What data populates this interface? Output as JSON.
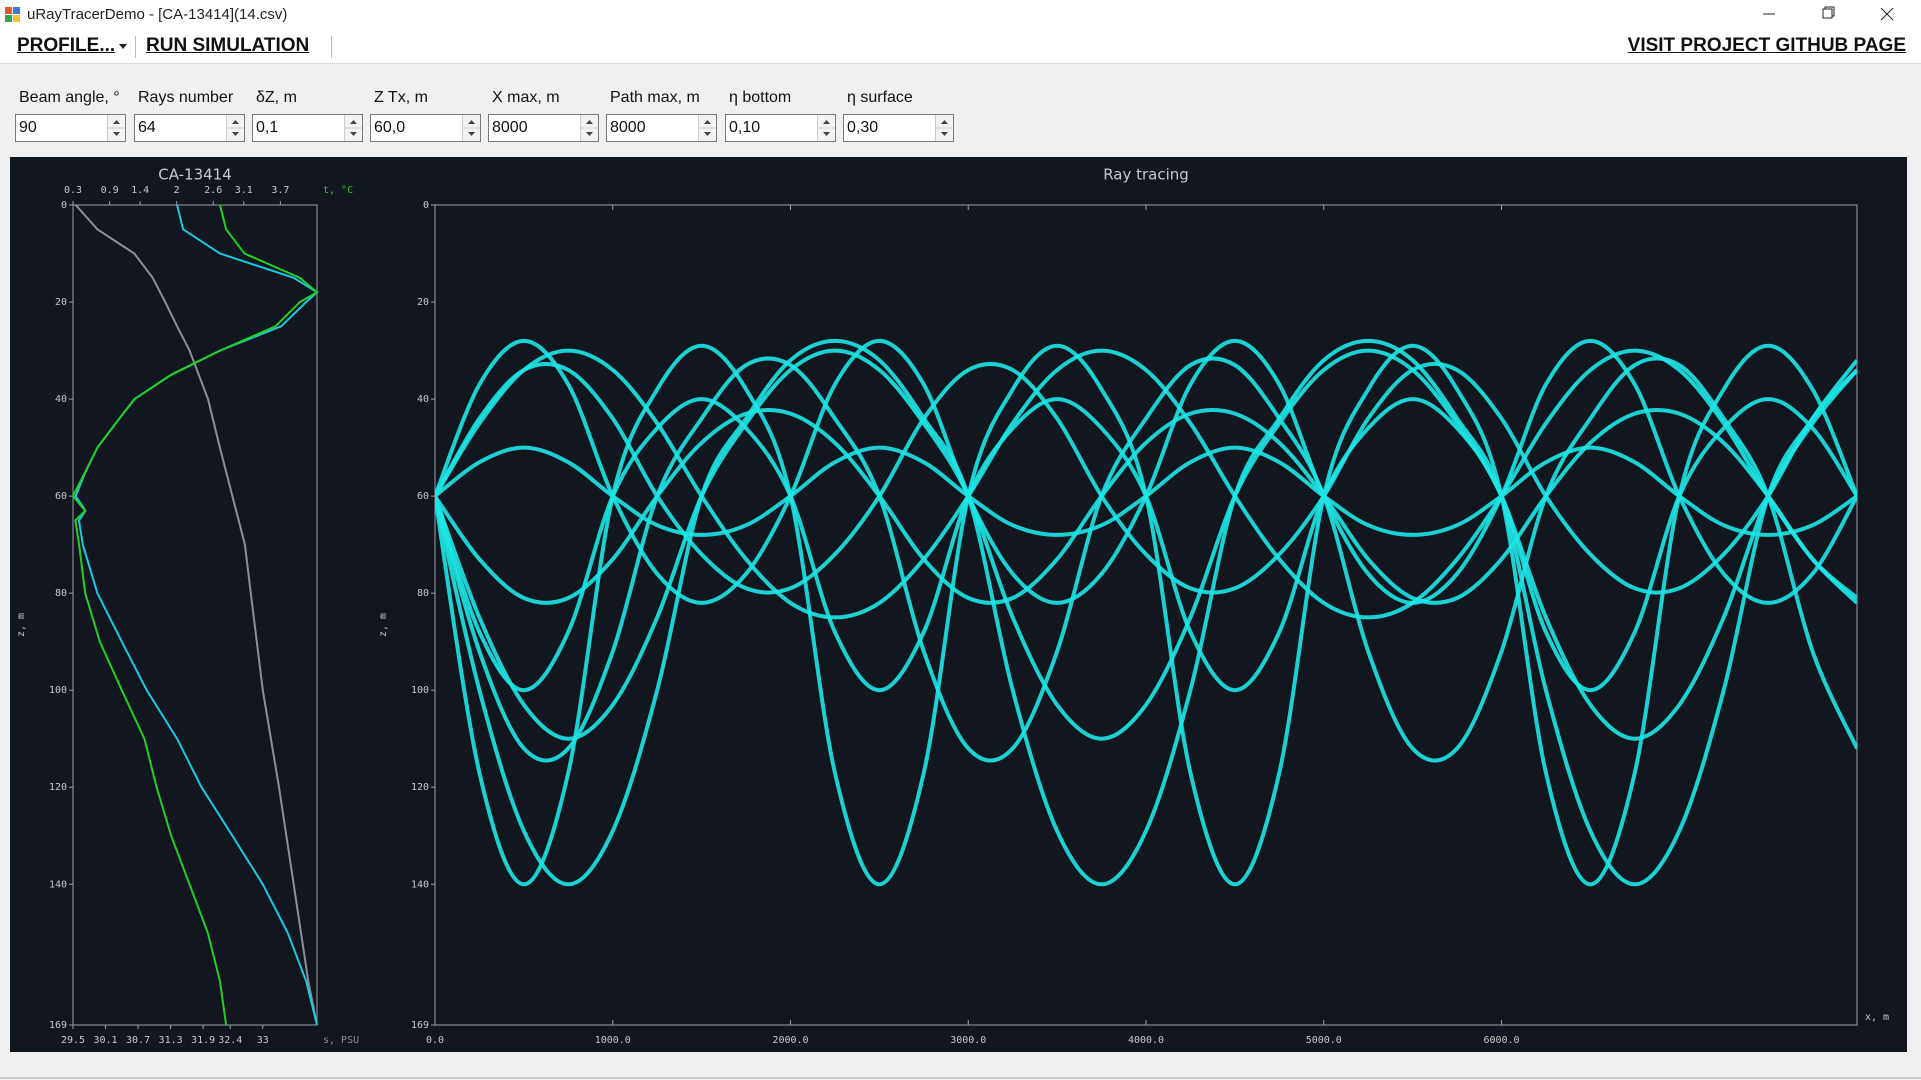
{
  "window": {
    "title": "uRayTracerDemo - [CA-13414](14.csv)"
  },
  "menu": {
    "profile": "PROFILE...",
    "run": "RUN SIMULATION",
    "github": "VISIT PROJECT GITHUB PAGE"
  },
  "params": [
    {
      "label": "Beam angle, °",
      "value": "90"
    },
    {
      "label": "Rays number",
      "value": "64"
    },
    {
      "label": "δZ, m",
      "value": "0,1"
    },
    {
      "label": "Z Tx, m",
      "value": "60,0"
    },
    {
      "label": "X max, m",
      "value": "8000"
    },
    {
      "label": "Path max, m",
      "value": "8000"
    },
    {
      "label": "η bottom",
      "value": "0,10"
    },
    {
      "label": "η surface",
      "value": "0,30"
    }
  ],
  "chart_data": [
    {
      "type": "profile",
      "title": "CA-13414",
      "ylabel": "z, m",
      "ylim": [
        0,
        169
      ],
      "yticks": [
        0,
        20,
        40,
        60,
        80,
        100,
        120,
        140,
        169
      ],
      "invert_y": true,
      "x2label": "t, °C",
      "x2lim": [
        0.3,
        4.3
      ],
      "x2ticks": [
        0.3,
        0.9,
        1.4,
        2.0,
        2.6,
        3.1,
        3.7
      ],
      "x2color": "#22d022",
      "xlabel": "s, PSU",
      "xlim": [
        29.5,
        34.0
      ],
      "xticks": [
        29.5,
        30.1,
        30.7,
        31.3,
        31.9,
        32.4,
        33.0
      ],
      "series": [
        {
          "color": "#8a8f99",
          "axis": "x",
          "z": [
            0,
            5,
            10,
            15,
            20,
            25,
            30,
            40,
            50,
            60,
            70,
            80,
            100,
            120,
            140,
            160,
            169
          ],
          "values": [
            29.55,
            29.95,
            30.63,
            30.97,
            31.2,
            31.42,
            31.65,
            31.99,
            32.21,
            32.44,
            32.67,
            32.78,
            33.0,
            33.3,
            33.57,
            33.84,
            34.0
          ]
        },
        {
          "color": "#19c9e0",
          "axis": "x",
          "z": [
            0,
            5,
            10,
            15,
            18,
            20,
            25,
            30,
            35,
            40,
            45,
            50,
            55,
            60,
            63,
            65,
            70,
            80,
            90,
            100,
            110,
            120,
            130,
            140,
            150,
            160,
            169
          ],
          "values": [
            31.42,
            31.53,
            32.21,
            33.57,
            34.0,
            33.8,
            33.34,
            32.21,
            31.31,
            30.63,
            30.29,
            29.95,
            29.73,
            29.55,
            29.73,
            29.61,
            29.68,
            29.95,
            30.4,
            30.86,
            31.42,
            31.87,
            32.44,
            33.0,
            33.46,
            33.8,
            34.0
          ]
        },
        {
          "color": "#22d022",
          "axis": "x2",
          "z": [
            0,
            5,
            10,
            15,
            18,
            20,
            25,
            30,
            35,
            40,
            45,
            50,
            55,
            60,
            63,
            65,
            70,
            80,
            90,
            100,
            110,
            120,
            130,
            140,
            150,
            160,
            169
          ],
          "values": [
            2.71,
            2.81,
            3.11,
            4.02,
            4.3,
            4.02,
            3.62,
            2.71,
            1.91,
            1.31,
            1.0,
            0.7,
            0.5,
            0.3,
            0.5,
            0.34,
            0.4,
            0.5,
            0.74,
            1.1,
            1.47,
            1.67,
            1.91,
            2.21,
            2.51,
            2.71,
            2.81
          ]
        }
      ]
    },
    {
      "type": "rays",
      "title": "Ray tracing",
      "xlabel": "x, m",
      "ylabel": "z, m",
      "xlim": [
        0,
        8000
      ],
      "xticks": [
        {
          "value": 0,
          "label": "0.0"
        },
        {
          "value": 1000,
          "label": "1000.0"
        },
        {
          "value": 2000,
          "label": "2000.0"
        },
        {
          "value": 3000,
          "label": "3000.0"
        },
        {
          "value": 4000,
          "label": "4000.0"
        },
        {
          "value": 5000,
          "label": "5000.0"
        },
        {
          "value": 6000,
          "label": "6000.0"
        }
      ],
      "ylim": [
        0,
        169
      ],
      "yticks": [
        0,
        20,
        40,
        60,
        80,
        100,
        120,
        140,
        169
      ],
      "invert_y": true,
      "x": [
        0,
        250,
        500,
        750,
        1000,
        1250,
        1500,
        1750,
        2000,
        2250,
        2500,
        2750,
        3000,
        3250,
        3500,
        3750,
        4000,
        4250,
        4500,
        4750,
        5000,
        5250,
        5500,
        5750,
        6000,
        6250,
        6500,
        6750,
        7000,
        7250,
        7500,
        7750,
        8000
      ],
      "series": [
        {
          "color": "#1ee6e6",
          "values": [
            60,
            37,
            28,
            37,
            60,
            76,
            82,
            76,
            60,
            37,
            28,
            37,
            60,
            76,
            82,
            76,
            60,
            37,
            28,
            37,
            60,
            76,
            82,
            76,
            60,
            37,
            28,
            37,
            60,
            76,
            82,
            76,
            60
          ]
        },
        {
          "color": "#1ee6e6",
          "values": [
            60,
            117,
            140,
            117,
            60,
            38,
            29,
            38,
            60,
            117,
            140,
            117,
            60,
            38,
            29,
            38,
            60,
            117,
            140,
            117,
            60,
            38,
            29,
            38,
            60,
            117,
            140,
            117,
            60,
            38,
            29,
            38,
            60
          ]
        },
        {
          "color": "#1ee6e6",
          "values": [
            60,
            44,
            34,
            34,
            44,
            60,
            72,
            79,
            79,
            72,
            60,
            44,
            34,
            34,
            44,
            60,
            72,
            79,
            79,
            72,
            60,
            44,
            34,
            34,
            44,
            60,
            72,
            79,
            79,
            72,
            60,
            44,
            34
          ]
        },
        {
          "color": "#1ee6e6",
          "values": [
            60,
            92,
            112,
            112,
            92,
            60,
            44,
            33,
            33,
            44,
            60,
            92,
            112,
            112,
            92,
            60,
            44,
            33,
            33,
            44,
            60,
            92,
            112,
            112,
            92,
            60,
            44,
            33,
            33,
            44,
            60,
            92,
            112
          ]
        },
        {
          "color": "#1ee6e6",
          "values": [
            60,
            45,
            34,
            30,
            34,
            45,
            60,
            73,
            82,
            85,
            82,
            73,
            60,
            45,
            34,
            30,
            34,
            45,
            60,
            73,
            82,
            85,
            82,
            73,
            60,
            45,
            34,
            30,
            34,
            45,
            60,
            73,
            82
          ]
        },
        {
          "color": "#1ee6e6",
          "values": [
            60,
            100,
            129,
            140,
            129,
            100,
            60,
            44,
            32,
            28,
            32,
            44,
            60,
            100,
            129,
            140,
            129,
            100,
            60,
            44,
            32,
            28,
            32,
            44,
            60,
            100,
            129,
            140,
            129,
            100,
            60,
            44,
            32
          ]
        },
        {
          "color": "#1ee6e6",
          "values": [
            60,
            53,
            50,
            53,
            60,
            66,
            68,
            66,
            60,
            53,
            50,
            53,
            60,
            66,
            68,
            66,
            60,
            53,
            50,
            53,
            60,
            66,
            68,
            66,
            60,
            53,
            50,
            53,
            60,
            66,
            68,
            66,
            60
          ]
        },
        {
          "color": "#1ee6e6",
          "values": [
            60,
            73,
            81,
            81,
            73,
            60,
            49,
            43,
            43,
            49,
            60,
            73,
            81,
            81,
            73,
            60,
            49,
            43,
            43,
            49,
            60,
            73,
            81,
            81,
            73,
            60,
            49,
            43,
            43,
            49,
            60,
            73,
            81
          ]
        },
        {
          "color": "#1ee6e6",
          "values": [
            60,
            85,
            103,
            110,
            103,
            85,
            60,
            45,
            34,
            30,
            34,
            45,
            60,
            85,
            103,
            110,
            103,
            85,
            60,
            45,
            34,
            30,
            34,
            45,
            60,
            85,
            103,
            110,
            103,
            85,
            60,
            45,
            34
          ]
        },
        {
          "color": "#1ee6e6",
          "values": [
            60,
            88,
            100,
            88,
            60,
            46,
            40,
            46,
            60,
            88,
            100,
            88,
            60,
            46,
            40,
            46,
            60,
            88,
            100,
            88,
            60,
            46,
            40,
            46,
            60,
            88,
            100,
            88,
            60,
            46,
            40,
            46,
            60
          ]
        }
      ]
    }
  ]
}
